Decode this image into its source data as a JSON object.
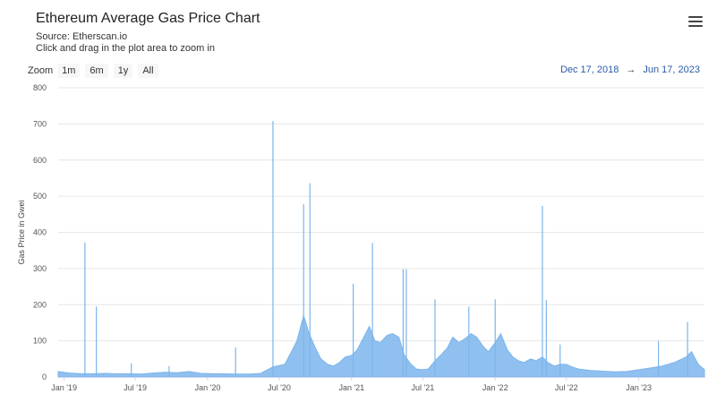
{
  "header": {
    "title": "Ethereum Average Gas Price Chart",
    "source": "Source: Etherscan.io",
    "hint": "Click and drag in the plot area to zoom in",
    "menu_icon": "hamburger-menu-icon"
  },
  "zoom": {
    "label": "Zoom",
    "buttons": [
      "1m",
      "6m",
      "1y",
      "All"
    ]
  },
  "range": {
    "from": "Dec 17, 2018",
    "arrow": "→",
    "to": "Jun 17, 2023"
  },
  "colors": {
    "series": "#7cb5ec",
    "grid": "#e6e6e6",
    "link": "#2b5ba8"
  },
  "chart_data": {
    "type": "area",
    "title": "Ethereum Average Gas Price Chart",
    "ylabel": "Gas Price in Gwei",
    "xlabel": "",
    "ylim": [
      0,
      800
    ],
    "yticks": [
      0,
      100,
      200,
      300,
      400,
      500,
      600,
      700,
      800
    ],
    "xrange": [
      "2018-12-17",
      "2023-06-17"
    ],
    "xticks": [
      {
        "label": "Jan '19",
        "date": "2019-01-01"
      },
      {
        "label": "Jul '19",
        "date": "2019-07-01"
      },
      {
        "label": "Jan '20",
        "date": "2020-01-01"
      },
      {
        "label": "Jul '20",
        "date": "2020-07-01"
      },
      {
        "label": "Jan '21",
        "date": "2021-01-01"
      },
      {
        "label": "Jul '21",
        "date": "2021-07-01"
      },
      {
        "label": "Jan '22",
        "date": "2022-01-01"
      },
      {
        "label": "Jul '22",
        "date": "2022-07-01"
      },
      {
        "label": "Jan '23",
        "date": "2023-01-01"
      }
    ],
    "grid": true,
    "legend": false,
    "series": [
      {
        "x": [
          "2018-12-17",
          "2019-01-15",
          "2019-02-15",
          "2019-03-15",
          "2019-04-15",
          "2019-05-15",
          "2019-06-15",
          "2019-07-15",
          "2019-08-15",
          "2019-09-15",
          "2019-10-15",
          "2019-11-15",
          "2019-12-15",
          "2020-01-15",
          "2020-02-15",
          "2020-03-15",
          "2020-04-15",
          "2020-05-15",
          "2020-06-15",
          "2020-07-15",
          "2020-08-01",
          "2020-08-15",
          "2020-09-01",
          "2020-09-15",
          "2020-10-01",
          "2020-10-15",
          "2020-11-01",
          "2020-11-15",
          "2020-12-01",
          "2020-12-15",
          "2021-01-01",
          "2021-01-15",
          "2021-02-01",
          "2021-02-15",
          "2021-03-01",
          "2021-03-15",
          "2021-04-01",
          "2021-04-15",
          "2021-05-01",
          "2021-05-15",
          "2021-06-01",
          "2021-06-15",
          "2021-07-01",
          "2021-07-15",
          "2021-08-01",
          "2021-08-15",
          "2021-09-01",
          "2021-09-15",
          "2021-10-01",
          "2021-10-15",
          "2021-11-01",
          "2021-11-15",
          "2021-12-01",
          "2021-12-15",
          "2022-01-01",
          "2022-01-15",
          "2022-02-01",
          "2022-02-15",
          "2022-03-01",
          "2022-03-15",
          "2022-04-01",
          "2022-04-15",
          "2022-05-01",
          "2022-05-15",
          "2022-06-01",
          "2022-06-15",
          "2022-07-01",
          "2022-07-15",
          "2022-08-01",
          "2022-09-01",
          "2022-10-01",
          "2022-11-01",
          "2022-12-01",
          "2023-01-01",
          "2023-02-01",
          "2023-03-01",
          "2023-04-01",
          "2023-05-01",
          "2023-05-15",
          "2023-06-01",
          "2023-06-17"
        ],
        "y": [
          15,
          11,
          9,
          9,
          10,
          9,
          9,
          8,
          11,
          13,
          12,
          15,
          10,
          9,
          9,
          8,
          8,
          10,
          28,
          35,
          70,
          100,
          170,
          120,
          80,
          50,
          35,
          30,
          40,
          55,
          60,
          75,
          110,
          140,
          100,
          95,
          115,
          120,
          110,
          60,
          35,
          22,
          20,
          22,
          45,
          60,
          80,
          110,
          95,
          105,
          120,
          110,
          85,
          70,
          95,
          120,
          75,
          55,
          45,
          40,
          50,
          45,
          55,
          40,
          30,
          35,
          35,
          28,
          22,
          18,
          16,
          14,
          15,
          20,
          25,
          30,
          40,
          55,
          70,
          35,
          20
        ]
      }
    ],
    "spikes": [
      {
        "date": "2019-02-23",
        "value": 372
      },
      {
        "date": "2019-03-24",
        "value": 195
      },
      {
        "date": "2019-06-21",
        "value": 38
      },
      {
        "date": "2019-09-25",
        "value": 30
      },
      {
        "date": "2020-03-12",
        "value": 82
      },
      {
        "date": "2020-06-15",
        "value": 708
      },
      {
        "date": "2020-09-01",
        "value": 478
      },
      {
        "date": "2020-09-17",
        "value": 536
      },
      {
        "date": "2021-01-05",
        "value": 258
      },
      {
        "date": "2021-02-23",
        "value": 371
      },
      {
        "date": "2021-05-12",
        "value": 298
      },
      {
        "date": "2021-05-20",
        "value": 298
      },
      {
        "date": "2021-08-01",
        "value": 215
      },
      {
        "date": "2021-10-26",
        "value": 195
      },
      {
        "date": "2022-01-01",
        "value": 215
      },
      {
        "date": "2022-05-01",
        "value": 473
      },
      {
        "date": "2022-05-11",
        "value": 213
      },
      {
        "date": "2022-06-15",
        "value": 90
      },
      {
        "date": "2023-02-20",
        "value": 100
      },
      {
        "date": "2023-05-05",
        "value": 152
      }
    ]
  }
}
